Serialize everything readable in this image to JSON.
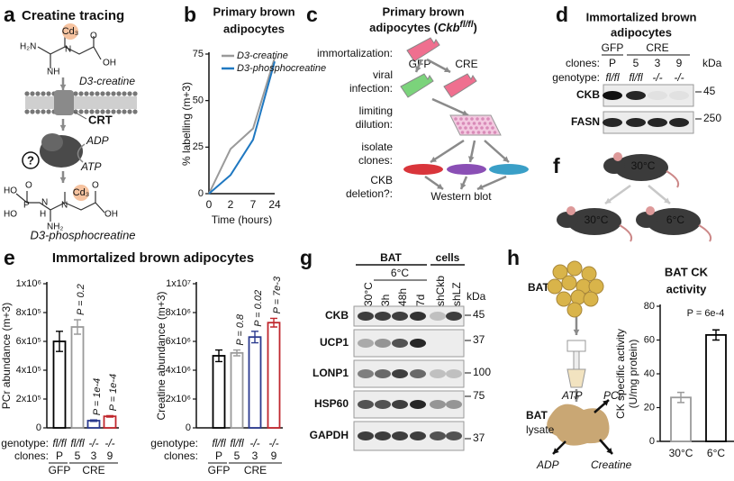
{
  "panel_letters": [
    "a",
    "b",
    "c",
    "d",
    "e",
    "f",
    "g",
    "h"
  ],
  "panel_a": {
    "title": "Creatine tracing",
    "isotope": "Cd₃",
    "creatine_atoms": [
      "H₂N",
      "NH",
      "N",
      "O",
      "OH"
    ],
    "creatine_label": "D3-creatine",
    "transporter": "CRT",
    "adp": "ADP",
    "unknown": "?",
    "atp": "ATP",
    "pcr_atoms": [
      "HO",
      "O",
      "P",
      "HO",
      "N",
      "H",
      "NH₂",
      "N",
      "O",
      "OH"
    ],
    "pcr_isotope": "Cd₃",
    "pcr_label": "D3-phosphocreatine"
  },
  "panel_c": {
    "title": [
      "Primary brown",
      "adipocytes ("
    ],
    "title_gene": "Ckb",
    "title_sup": "fl/fl",
    "title_close": ")",
    "steps": [
      [
        "immortalization:"
      ],
      [
        "viral",
        "infection:"
      ],
      [
        "limiting",
        "dilution:"
      ],
      [
        "isolate",
        "clones:"
      ],
      [
        "CKB",
        "deletion?:"
      ]
    ],
    "gfp": "GFP",
    "cre": "CRE",
    "readout": "Western blot"
  },
  "panel_d": {
    "title": [
      "Immortalized brown",
      "adipocytes"
    ],
    "groups": [
      "GFP",
      "CRE"
    ],
    "clones_label": "clones:",
    "clones": [
      "P",
      "5",
      "3",
      "9"
    ],
    "genotype_label": "genotype:",
    "genotypes": [
      "fl/fl",
      "fl/fl",
      "-/-",
      "-/-"
    ],
    "kda": "kDa",
    "bands": [
      {
        "name": "CKB",
        "marker": "45"
      },
      {
        "name": "FASN",
        "marker": "250"
      }
    ]
  },
  "panel_e": {
    "title": "Immortalized brown adipocytes"
  },
  "panel_f": {
    "temps": [
      "30°C",
      "30°C",
      "6°C"
    ]
  },
  "panel_g": {
    "groups": [
      "BAT",
      "cells"
    ],
    "cold": "6°C",
    "lanes": [
      "30°C",
      "3h",
      "48h",
      "7d",
      "shCkb",
      "shLZ"
    ],
    "kda": "kDa",
    "bands": [
      {
        "name": "CKB",
        "marker": "45"
      },
      {
        "name": "UCP1",
        "marker": "37"
      },
      {
        "name": "LONP1",
        "marker": "100"
      },
      {
        "name": "HSP60",
        "marker": "75"
      },
      {
        "name": "GAPDH",
        "marker": "37"
      }
    ]
  },
  "panel_h": {
    "tissue": "BAT",
    "atp": "ATP",
    "pcr": "PCr",
    "lysate": [
      "BAT",
      "lysate"
    ],
    "adp": "ADP",
    "creatine": "Creatine"
  },
  "chart_data": [
    {
      "type": "line",
      "title": [
        "Primary brown",
        "adipocytes"
      ],
      "categories": [
        "0",
        "2",
        "7",
        "24"
      ],
      "xlabel": "Time (hours)",
      "ylabel": "% labelling (m+3)",
      "ylim": [
        0,
        75
      ],
      "yticks": [
        0,
        25,
        50,
        75
      ],
      "series": [
        {
          "name": "D3-creatine",
          "color": "#9a9a9a",
          "values": [
            0,
            24,
            35,
            73
          ]
        },
        {
          "name": "D3-phosphocreatine",
          "color": "#1f78c1",
          "values": [
            0,
            10,
            29,
            71
          ]
        }
      ]
    },
    {
      "type": "bar",
      "ylabel": "PCr abundance (m+3)",
      "categories": [
        "P",
        "5",
        "3",
        "9"
      ],
      "clones_label": "clones:",
      "genotype_label": "genotype:",
      "genotypes": [
        "fl/fl",
        "fl/fl",
        "-/-",
        "-/-"
      ],
      "groups": [
        "GFP",
        "CRE"
      ],
      "values": [
        600000,
        700000,
        50000,
        80000
      ],
      "errors": [
        70000,
        50000,
        5000,
        5000
      ],
      "colors": [
        "#000000",
        "#9a9a9a",
        "#2b3a8f",
        "#c0272d"
      ],
      "p_labels": [
        null,
        "P = 0.2",
        "P = 1e-4",
        "P = 1e-4"
      ],
      "ylim": [
        0,
        1000000
      ],
      "yticks": [
        0,
        {
          "value": 200000,
          "label": "2x10⁵"
        },
        {
          "value": 400000,
          "label": "4x10⁵"
        },
        {
          "value": 600000,
          "label": "6x10⁵"
        },
        {
          "value": 800000,
          "label": "8x10⁵"
        },
        {
          "value": 1000000,
          "label": "1x10⁶"
        }
      ]
    },
    {
      "type": "bar",
      "ylabel": "Creatine abundance (m+3)",
      "categories": [
        "P",
        "5",
        "3",
        "9"
      ],
      "clones_label": "clones:",
      "genotype_label": "genotype:",
      "genotypes": [
        "fl/fl",
        "fl/fl",
        "-/-",
        "-/-"
      ],
      "groups": [
        "GFP",
        "CRE"
      ],
      "values": [
        5000000,
        5200000,
        6300000,
        7300000
      ],
      "errors": [
        400000,
        200000,
        400000,
        300000
      ],
      "colors": [
        "#000000",
        "#9a9a9a",
        "#2b3a8f",
        "#c0272d"
      ],
      "p_labels": [
        null,
        "P = 0.8",
        "P = 0.02",
        "P = 7e-3"
      ],
      "ylim": [
        0,
        10000000
      ],
      "yticks": [
        0,
        {
          "value": 2000000,
          "label": "2x10⁶"
        },
        {
          "value": 4000000,
          "label": "4x10⁶"
        },
        {
          "value": 6000000,
          "label": "6x10⁶"
        },
        {
          "value": 8000000,
          "label": "8x10⁶"
        },
        {
          "value": 10000000,
          "label": "1x10⁷"
        }
      ]
    },
    {
      "type": "bar",
      "title": [
        "BAT CK",
        "activity"
      ],
      "ylabel": [
        "CK specific activity",
        "(U/mg protein)"
      ],
      "categories": [
        "30°C",
        "6°C"
      ],
      "values": [
        26,
        63
      ],
      "errors": [
        3,
        3
      ],
      "colors": [
        "#9a9a9a",
        "#000000"
      ],
      "p_label": "P = 6e-4",
      "ylim": [
        0,
        80
      ],
      "yticks": [
        0,
        20,
        40,
        60,
        80
      ]
    }
  ]
}
